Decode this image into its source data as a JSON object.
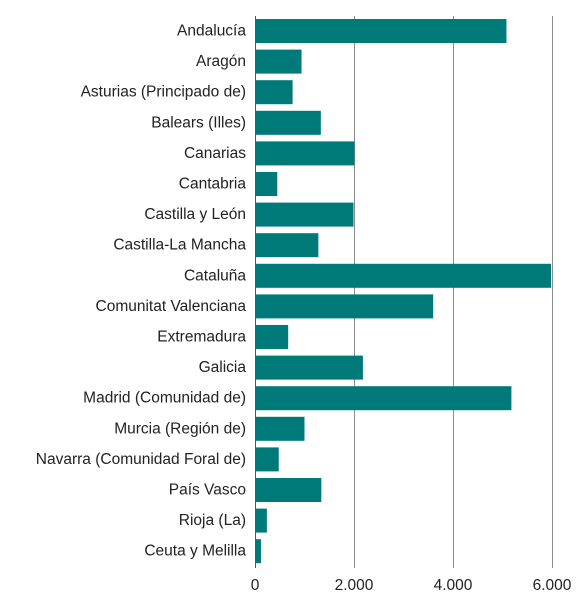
{
  "chart_data": {
    "type": "bar",
    "orientation": "horizontal",
    "categories": [
      "Andalucía",
      "Aragón",
      "Asturias (Principado de)",
      "Balears (Illes)",
      "Canarias",
      "Cantabria",
      "Castilla y León",
      "Castilla-La Mancha",
      "Cataluña",
      "Comunitat Valenciana",
      "Extremadura",
      "Galicia",
      "Madrid (Comunidad de)",
      "Murcia (Región de)",
      "Navarra (Comunidad Foral de)",
      "País Vasco",
      "Rioja (La)",
      "Ceuta y Melilla"
    ],
    "values": [
      5080,
      940,
      760,
      1330,
      2010,
      450,
      1990,
      1280,
      5980,
      3600,
      670,
      2180,
      5180,
      1000,
      480,
      1340,
      240,
      120
    ],
    "xlim": [
      0,
      6000
    ],
    "xticks": [
      0,
      2000,
      4000,
      6000
    ],
    "xtick_labels": [
      "0",
      "2.000",
      "4.000",
      "6.000"
    ],
    "title": "",
    "xlabel": "",
    "ylabel": "",
    "grid": "vertical",
    "bar_color": "#007a78"
  }
}
